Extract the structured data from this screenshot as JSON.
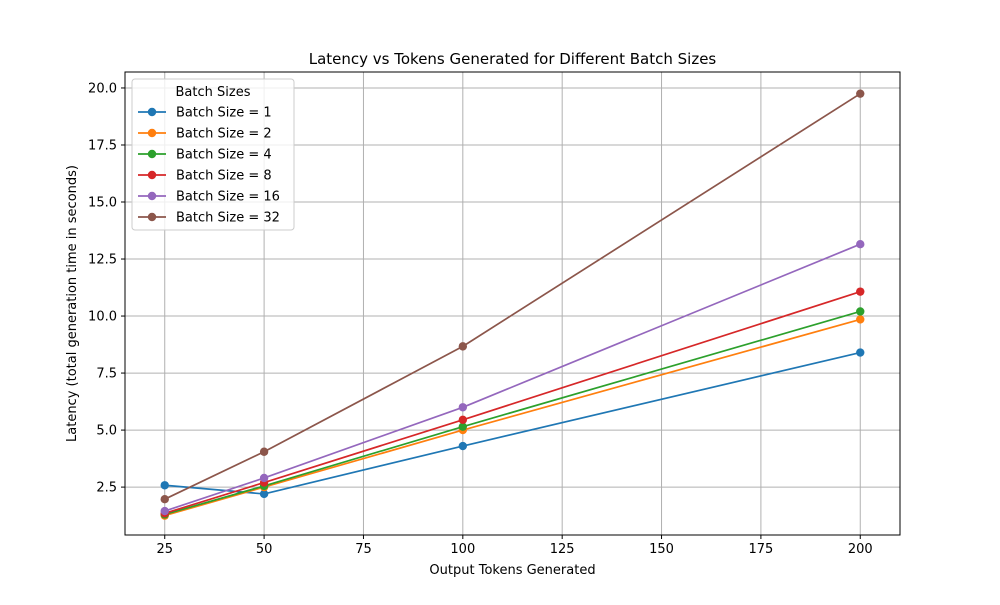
{
  "chart_data": {
    "type": "line",
    "title": "Latency vs Tokens Generated for Different Batch Sizes",
    "xlabel": "Output Tokens Generated",
    "ylabel": "Latency (total generation time in seconds)",
    "x": [
      25,
      50,
      100,
      200
    ],
    "xlim": [
      15,
      210
    ],
    "ylim": [
      0.4,
      20.7
    ],
    "xticks": [
      25,
      50,
      75,
      100,
      125,
      150,
      175,
      200
    ],
    "xtick_labels": [
      "25",
      "50",
      "75",
      "100",
      "125",
      "150",
      "175",
      "200"
    ],
    "yticks": [
      2.5,
      5.0,
      7.5,
      10.0,
      12.5,
      15.0,
      17.5,
      20.0
    ],
    "ytick_labels": [
      "2.5",
      "5.0",
      "7.5",
      "10.0",
      "12.5",
      "15.0",
      "17.5",
      "20.0"
    ],
    "grid": true,
    "legend": {
      "title": "Batch Sizes",
      "placement": "top-left"
    },
    "series": [
      {
        "name": "Batch Size = 1",
        "color": "#1f77b4",
        "values": [
          2.58,
          2.2,
          4.3,
          8.4
        ]
      },
      {
        "name": "Batch Size = 2",
        "color": "#ff7f0e",
        "values": [
          1.25,
          2.5,
          5.0,
          9.85
        ]
      },
      {
        "name": "Batch Size = 4",
        "color": "#2ca02c",
        "values": [
          1.3,
          2.55,
          5.15,
          10.2
        ]
      },
      {
        "name": "Batch Size = 8",
        "color": "#d62728",
        "values": [
          1.35,
          2.7,
          5.45,
          11.07
        ]
      },
      {
        "name": "Batch Size = 16",
        "color": "#9467bd",
        "values": [
          1.45,
          2.9,
          6.0,
          13.15
        ]
      },
      {
        "name": "Batch Size = 32",
        "color": "#8c564b",
        "values": [
          1.97,
          4.05,
          8.67,
          19.75
        ]
      }
    ]
  }
}
